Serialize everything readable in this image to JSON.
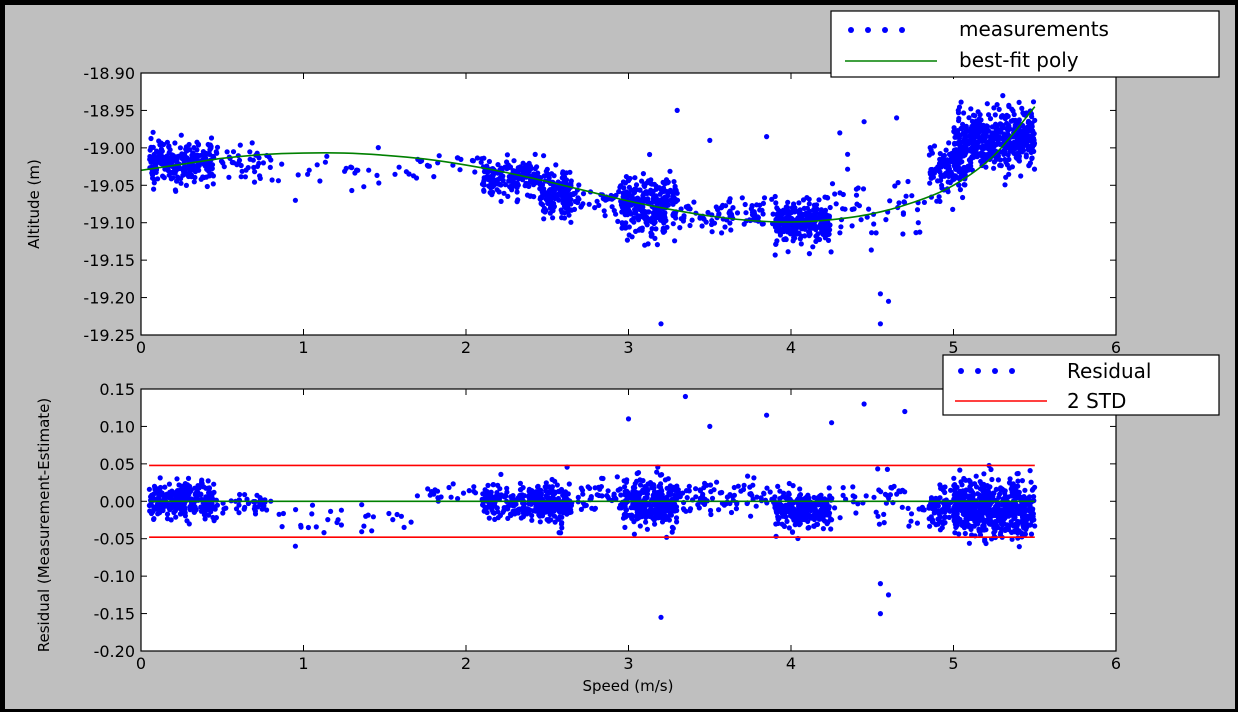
{
  "chart_data": [
    {
      "type": "scatter",
      "title": "",
      "xlabel": "",
      "ylabel": "Altitude (m)",
      "xlim": [
        0,
        6
      ],
      "ylim": [
        -19.25,
        -18.9
      ],
      "xticks": [
        0,
        1,
        2,
        3,
        4,
        5,
        6
      ],
      "yticks": [
        -18.9,
        -18.95,
        -19.0,
        -19.05,
        -19.1,
        -19.15,
        -19.2,
        -19.25
      ],
      "xtick_labels": [
        "0",
        "1",
        "2",
        "3",
        "4",
        "5",
        "6"
      ],
      "ytick_labels": [
        "-18.90",
        "-18.95",
        "-19.00",
        "-19.05",
        "-19.10",
        "-19.15",
        "-19.20",
        "-19.25"
      ],
      "legend_position": "top-right",
      "grid": false,
      "series": [
        {
          "name": "measurements",
          "kind": "scatter",
          "color": "#0000ff",
          "clusters": [
            {
              "x": [
                0.05,
                0.45
              ],
              "y_center": -19.02,
              "spread": 0.025,
              "count": 260
            },
            {
              "x": [
                0.4,
                0.8
              ],
              "y_center": -19.02,
              "spread": 0.02,
              "count": 50
            },
            {
              "x": [
                0.8,
                1.7
              ],
              "y_center": -19.03,
              "spread": 0.02,
              "count": 30
            },
            {
              "x": [
                1.7,
                2.1
              ],
              "y_center": -19.02,
              "spread": 0.015,
              "count": 20
            },
            {
              "x": [
                2.1,
                2.45
              ],
              "y_center": -19.04,
              "spread": 0.025,
              "count": 170
            },
            {
              "x": [
                2.45,
                2.65
              ],
              "y_center": -19.06,
              "spread": 0.03,
              "count": 170
            },
            {
              "x": [
                2.65,
                2.95
              ],
              "y_center": -19.07,
              "spread": 0.02,
              "count": 40
            },
            {
              "x": [
                2.95,
                3.3
              ],
              "y_center": -19.08,
              "spread": 0.035,
              "count": 280
            },
            {
              "x": [
                3.3,
                3.9
              ],
              "y_center": -19.09,
              "spread": 0.02,
              "count": 90
            },
            {
              "x": [
                3.9,
                4.25
              ],
              "y_center": -19.1,
              "spread": 0.028,
              "count": 260
            },
            {
              "x": [
                4.25,
                4.85
              ],
              "y_center": -19.08,
              "spread": 0.04,
              "count": 50
            },
            {
              "x": [
                4.85,
                5.1
              ],
              "y_center": -19.03,
              "spread": 0.03,
              "count": 120
            },
            {
              "x": [
                5.0,
                5.5
              ],
              "y_center": -18.99,
              "spread": 0.035,
              "count": 520
            }
          ],
          "outliers": [
            {
              "x": 3.3,
              "y": -18.95
            },
            {
              "x": 3.2,
              "y": -19.235
            },
            {
              "x": 4.55,
              "y": -19.235
            },
            {
              "x": 4.55,
              "y": -19.195
            },
            {
              "x": 4.6,
              "y": -19.205
            },
            {
              "x": 4.45,
              "y": -18.965
            },
            {
              "x": 4.65,
              "y": -18.96
            },
            {
              "x": 3.85,
              "y": -18.985
            },
            {
              "x": 4.3,
              "y": -18.98
            },
            {
              "x": 3.5,
              "y": -18.99
            },
            {
              "x": 0.95,
              "y": -19.07
            }
          ]
        },
        {
          "name": "best-fit poly",
          "kind": "line",
          "color": "#008000",
          "x": [
            0,
            0.25,
            0.5,
            0.75,
            1.0,
            1.25,
            1.5,
            1.75,
            2.0,
            2.25,
            2.5,
            2.75,
            3.0,
            3.25,
            3.5,
            3.75,
            4.0,
            4.25,
            4.5,
            4.75,
            5.0,
            5.25,
            5.5
          ],
          "y": [
            -19.03,
            -19.022,
            -19.014,
            -19.009,
            -19.007,
            -19.007,
            -19.01,
            -19.015,
            -19.023,
            -19.033,
            -19.045,
            -19.058,
            -19.071,
            -19.082,
            -19.091,
            -19.097,
            -19.099,
            -19.096,
            -19.088,
            -19.073,
            -19.05,
            -19.01,
            -18.945
          ]
        }
      ]
    },
    {
      "type": "scatter",
      "title": "",
      "xlabel": "Speed (m/s)",
      "ylabel": "Residual (Measurement-Estimate)",
      "xlim": [
        0,
        6
      ],
      "ylim": [
        -0.2,
        0.15
      ],
      "xticks": [
        0,
        1,
        2,
        3,
        4,
        5,
        6
      ],
      "yticks": [
        0.15,
        0.1,
        0.05,
        0.0,
        -0.05,
        -0.1,
        -0.15,
        -0.2
      ],
      "xtick_labels": [
        "0",
        "1",
        "2",
        "3",
        "4",
        "5",
        "6"
      ],
      "ytick_labels": [
        "0.15",
        "0.10",
        "0.05",
        "0.00",
        "-0.05",
        "-0.10",
        "-0.15",
        "-0.20"
      ],
      "legend_position": "top-right",
      "grid": false,
      "series": [
        {
          "name": "Residual",
          "kind": "scatter",
          "color": "#0000ff",
          "clusters": [
            {
              "x": [
                0.05,
                0.45
              ],
              "y_center": 0.0,
              "spread": 0.022,
              "count": 260
            },
            {
              "x": [
                0.4,
                0.8
              ],
              "y_center": -0.005,
              "spread": 0.018,
              "count": 50
            },
            {
              "x": [
                0.8,
                1.7
              ],
              "y_center": -0.025,
              "spread": 0.018,
              "count": 30
            },
            {
              "x": [
                1.7,
                2.1
              ],
              "y_center": 0.01,
              "spread": 0.012,
              "count": 20
            },
            {
              "x": [
                2.1,
                2.45
              ],
              "y_center": 0.0,
              "spread": 0.022,
              "count": 170
            },
            {
              "x": [
                2.45,
                2.65
              ],
              "y_center": -0.005,
              "spread": 0.025,
              "count": 170
            },
            {
              "x": [
                2.65,
                2.95
              ],
              "y_center": 0.01,
              "spread": 0.02,
              "count": 40
            },
            {
              "x": [
                2.95,
                3.3
              ],
              "y_center": 0.0,
              "spread": 0.03,
              "count": 280
            },
            {
              "x": [
                3.3,
                3.9
              ],
              "y_center": 0.005,
              "spread": 0.02,
              "count": 90
            },
            {
              "x": [
                3.9,
                4.25
              ],
              "y_center": -0.01,
              "spread": 0.022,
              "count": 260
            },
            {
              "x": [
                4.25,
                4.85
              ],
              "y_center": 0.0,
              "spread": 0.035,
              "count": 50
            },
            {
              "x": [
                4.85,
                5.1
              ],
              "y_center": -0.01,
              "spread": 0.03,
              "count": 120
            },
            {
              "x": [
                5.0,
                5.5
              ],
              "y_center": -0.01,
              "spread": 0.035,
              "count": 520
            }
          ],
          "outliers": [
            {
              "x": 3.35,
              "y": 0.14
            },
            {
              "x": 3.2,
              "y": -0.155
            },
            {
              "x": 4.55,
              "y": -0.15
            },
            {
              "x": 4.55,
              "y": -0.11
            },
            {
              "x": 4.6,
              "y": -0.125
            },
            {
              "x": 4.45,
              "y": 0.13
            },
            {
              "x": 4.7,
              "y": 0.12
            },
            {
              "x": 3.85,
              "y": 0.115
            },
            {
              "x": 4.25,
              "y": 0.105
            },
            {
              "x": 3.5,
              "y": 0.1
            },
            {
              "x": 0.95,
              "y": -0.06
            },
            {
              "x": 3.0,
              "y": 0.11
            }
          ]
        },
        {
          "name": "2 STD",
          "kind": "hline",
          "color": "#ff0000",
          "x": [
            0.05,
            5.5
          ],
          "y_values": [
            0.048,
            -0.048
          ]
        },
        {
          "name": "",
          "kind": "hline",
          "color": "#008000",
          "x": [
            0.05,
            5.5
          ],
          "y_values": [
            0.0
          ]
        }
      ]
    }
  ]
}
